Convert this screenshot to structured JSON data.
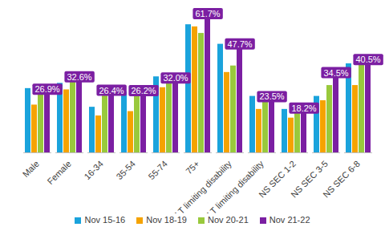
{
  "chart_data": {
    "type": "bar",
    "categories": [
      "Male",
      "Female",
      "16-34",
      "35-54",
      "55-74",
      "75+",
      "LT limiting disability",
      "No LT limiting disability",
      "NS SEC 1-2",
      "NS SEC 3-5",
      "NS SEC 6-8"
    ],
    "series": [
      {
        "name": "Nov 15-16",
        "color": "#1aa3dc",
        "values": [
          29.6,
          32,
          21,
          28,
          35,
          59,
          50,
          26,
          20,
          26,
          41
        ]
      },
      {
        "name": "Nov 18-19",
        "color": "#f5a300",
        "values": [
          22,
          29,
          17,
          19,
          30,
          58,
          37,
          20,
          16,
          24,
          31
        ]
      },
      {
        "name": "Nov 20-21",
        "color": "#99c93c",
        "values": [
          29.6,
          36,
          28,
          30,
          33,
          55,
          40,
          25,
          19,
          31,
          44
        ]
      },
      {
        "name": "Nov 21-22",
        "color": "#7b1fa2",
        "values": [
          26.9,
          32.6,
          26.4,
          26.2,
          32.0,
          61.7,
          47.7,
          23.5,
          18.2,
          34.5,
          40.5
        ],
        "data_labels": true,
        "value_labels": [
          "26.9%",
          "32.6%",
          "26.4%",
          "26.2%",
          "32.0%",
          "61.7%",
          "47.7%",
          "23.5%",
          "18.2%",
          "34.5%",
          "40.5%"
        ]
      }
    ],
    "ylim": [
      0,
      65
    ],
    "tick_labels": "x",
    "legend": "bottom"
  }
}
